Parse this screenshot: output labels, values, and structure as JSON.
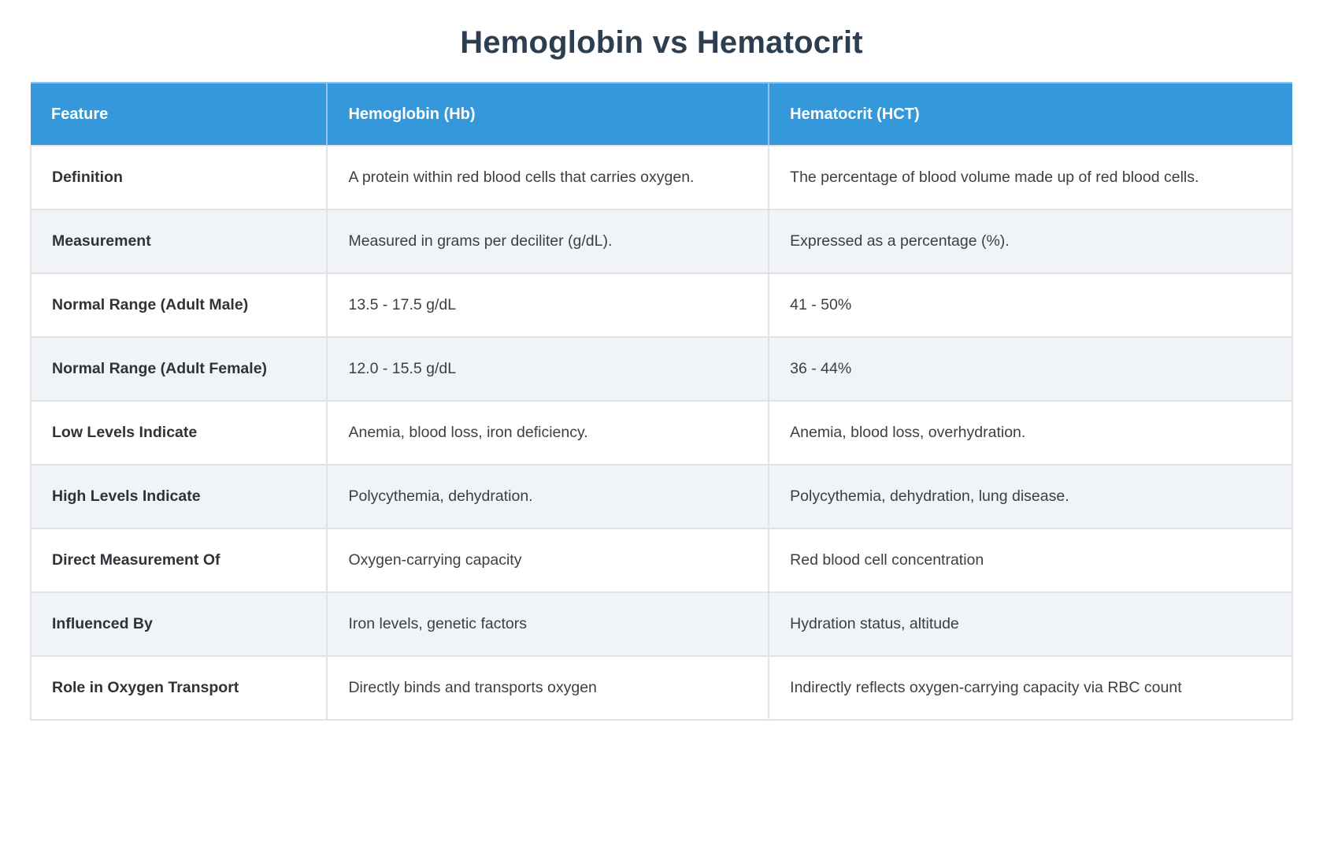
{
  "page": {
    "title": "Hemoglobin vs Hematocrit"
  },
  "colors": {
    "header_bg": "#3598db",
    "header_text": "#ffffff",
    "title_text": "#2c3e50",
    "body_text": "#3b4045",
    "row_alt_bg": "#f0f3f8",
    "row_bg": "#ffffff",
    "border": "#e2e2e2",
    "page_bg": "#ffffff"
  },
  "table": {
    "columns": [
      {
        "label": "Feature"
      },
      {
        "label": "Hemoglobin (Hb)"
      },
      {
        "label": "Hematocrit (HCT)"
      }
    ],
    "rows": [
      {
        "feature": "Definition",
        "hb": "A protein within red blood cells that carries oxygen.",
        "hct": "The percentage of blood volume made up of red blood cells."
      },
      {
        "feature": "Measurement",
        "hb": "Measured in grams per deciliter (g/dL).",
        "hct": "Expressed as a percentage (%)."
      },
      {
        "feature": "Normal Range (Adult Male)",
        "hb": "13.5 - 17.5 g/dL",
        "hct": "41 - 50%"
      },
      {
        "feature": "Normal Range (Adult Female)",
        "hb": "12.0 - 15.5 g/dL",
        "hct": "36 - 44%"
      },
      {
        "feature": "Low Levels Indicate",
        "hb": "Anemia, blood loss, iron deficiency.",
        "hct": "Anemia, blood loss, overhydration."
      },
      {
        "feature": "High Levels Indicate",
        "hb": "Polycythemia, dehydration.",
        "hct": "Polycythemia, dehydration, lung disease."
      },
      {
        "feature": "Direct Measurement Of",
        "hb": "Oxygen-carrying capacity",
        "hct": "Red blood cell concentration"
      },
      {
        "feature": "Influenced By",
        "hb": "Iron levels, genetic factors",
        "hct": "Hydration status, altitude"
      },
      {
        "feature": "Role in Oxygen Transport",
        "hb": "Directly binds and transports oxygen",
        "hct": "Indirectly reflects oxygen-carrying capacity via RBC count"
      }
    ]
  }
}
